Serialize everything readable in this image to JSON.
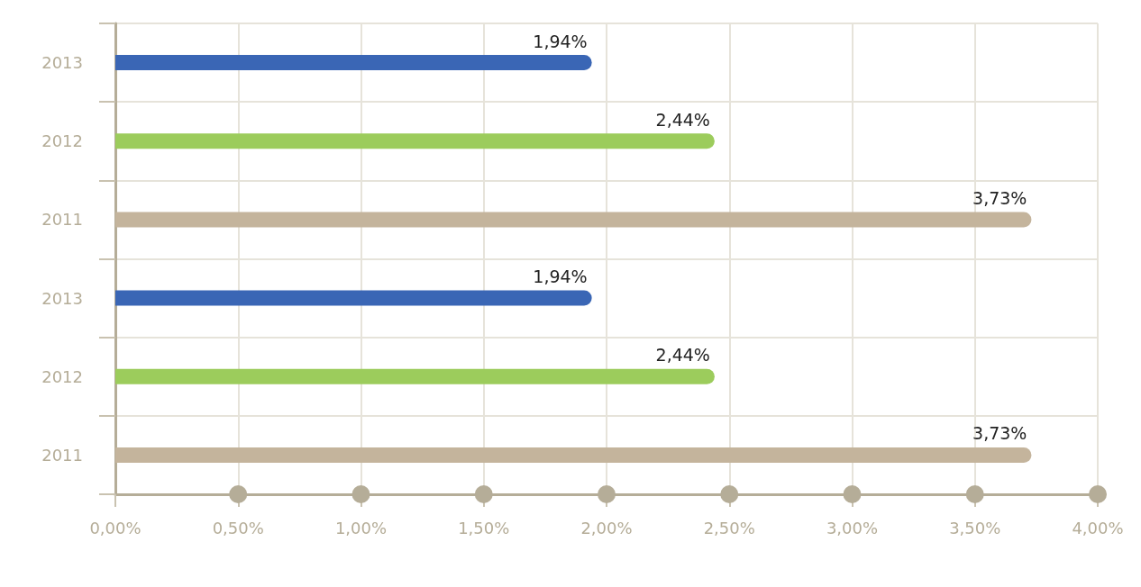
{
  "chart_data": {
    "type": "bar",
    "orientation": "horizontal",
    "categories": [
      "2013",
      "2012",
      "2011",
      "2013",
      "2012",
      "2011"
    ],
    "values": [
      1.94,
      2.44,
      3.73,
      1.94,
      2.44,
      3.73
    ],
    "colors": [
      "#3a66b5",
      "#9ccc5c",
      "#c4b49c",
      "#3a66b5",
      "#9ccc5c",
      "#c4b49c"
    ],
    "value_labels": [
      "1,94%",
      "2,44%",
      "3,73%",
      "1,94%",
      "2,44%",
      "3,73%"
    ],
    "xlim": [
      0,
      4
    ],
    "xticks": [
      {
        "value": 0,
        "label": "0,00%"
      },
      {
        "value": 0.5,
        "label": "0,50%"
      },
      {
        "value": 1,
        "label": "1,00%"
      },
      {
        "value": 1.5,
        "label": "1,50%"
      },
      {
        "value": 2,
        "label": "2,00%"
      },
      {
        "value": 2.5,
        "label": "2,50%"
      },
      {
        "value": 3,
        "label": "3,00%"
      },
      {
        "value": 3.5,
        "label": "3,50%"
      },
      {
        "value": 4,
        "label": "4,00%"
      }
    ],
    "grid": true
  }
}
